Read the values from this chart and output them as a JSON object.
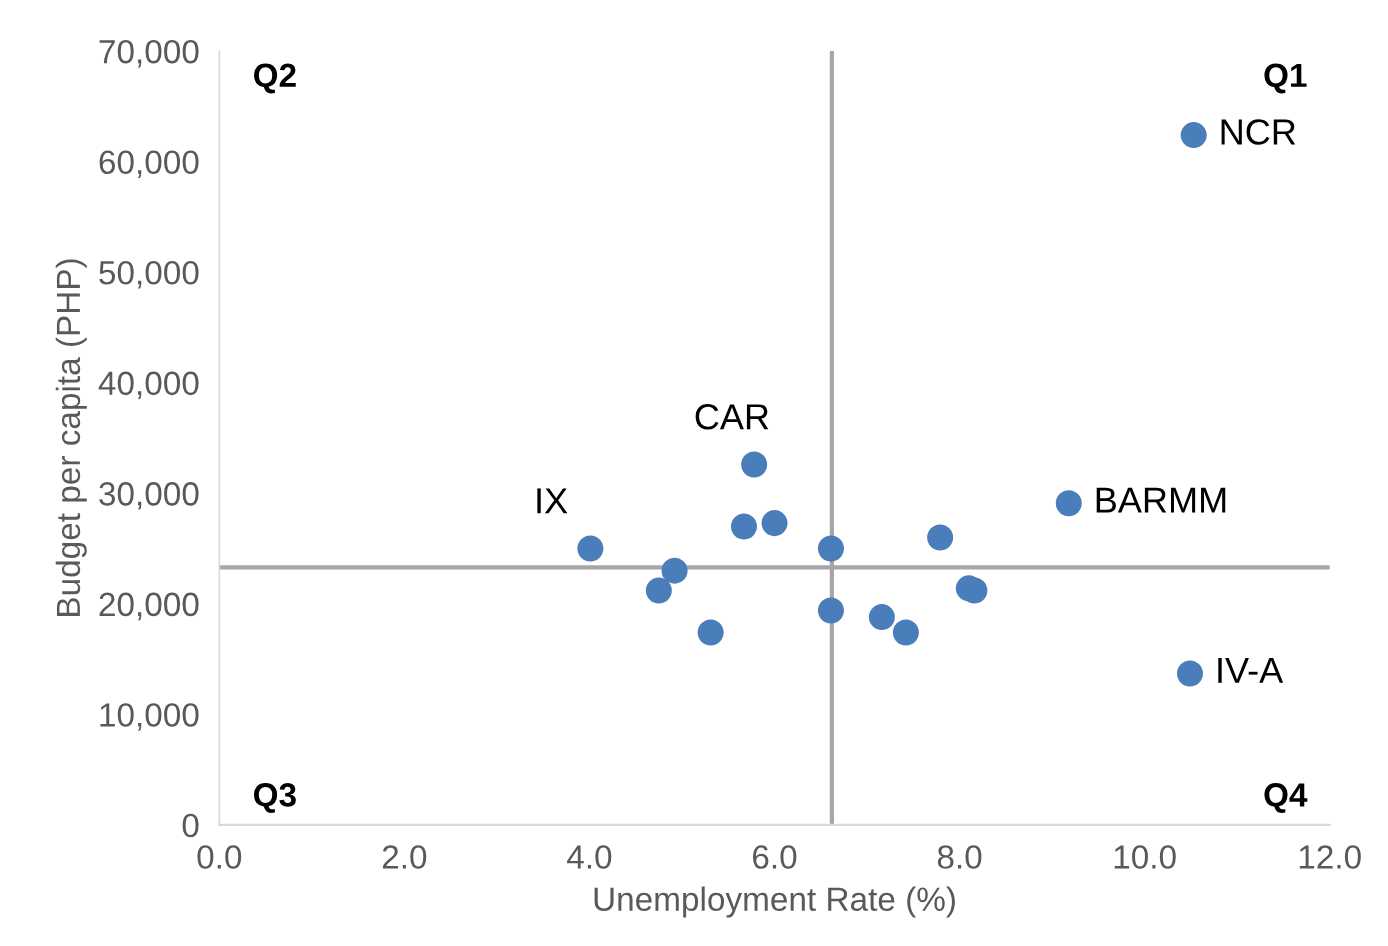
{
  "chart_data": {
    "type": "scatter",
    "xlabel": "Unemployment Rate (%)",
    "ylabel": "Budget per capita (PHP)",
    "series": [
      {
        "color": "#4a7ebb",
        "x": [
          4.01,
          5.78,
          5.67,
          6.0,
          6.61,
          4.92,
          4.75,
          5.31,
          6.61,
          7.16,
          7.42,
          7.79,
          8.1,
          8.16,
          9.18,
          10.53,
          10.49
        ],
        "values": [
          25000,
          32600,
          27000,
          27300,
          25000,
          23000,
          21200,
          17400,
          19400,
          18800,
          17400,
          26000,
          21400,
          21200,
          29100,
          62400,
          13700
        ]
      }
    ],
    "xlim": [
      0,
      12
    ],
    "xticks": [
      {
        "value": 0,
        "label": "0.0"
      },
      {
        "value": 2,
        "label": "2.0"
      },
      {
        "value": 4,
        "label": "4.0"
      },
      {
        "value": 6,
        "label": "6.0"
      },
      {
        "value": 8,
        "label": "8.0"
      },
      {
        "value": 10,
        "label": "10.0"
      },
      {
        "value": 12,
        "label": "12.0"
      }
    ],
    "ylim": [
      0,
      70000
    ],
    "yticks": [
      {
        "value": 0,
        "label": "0"
      },
      {
        "value": 10000,
        "label": "10,000"
      },
      {
        "value": 20000,
        "label": "20,000"
      },
      {
        "value": 30000,
        "label": "30,000"
      },
      {
        "value": 40000,
        "label": "40,000"
      },
      {
        "value": 50000,
        "label": "50,000"
      },
      {
        "value": 60000,
        "label": "60,000"
      },
      {
        "value": 70000,
        "label": "70,000"
      }
    ],
    "ref_lines": [
      {
        "axis": "x",
        "value": 6.62,
        "color": "#a6a6a6"
      },
      {
        "axis": "y",
        "value": 23300,
        "color": "#a6a6a6"
      }
    ],
    "annotations": [
      {
        "text": "NCR",
        "x": 10.53,
        "y": 62400
      },
      {
        "text": "BARMM",
        "x": 9.18,
        "y": 29100
      },
      {
        "text": "IV-A",
        "x": 10.49,
        "y": 13700
      },
      {
        "text": "CAR",
        "x": 5.78,
        "y": 32600
      },
      {
        "text": "IX",
        "x": 4.01,
        "y": 25000
      },
      "Q1",
      "Q2",
      "Q3",
      "Q4"
    ],
    "grid": false,
    "marker": "circle",
    "legend": false
  }
}
